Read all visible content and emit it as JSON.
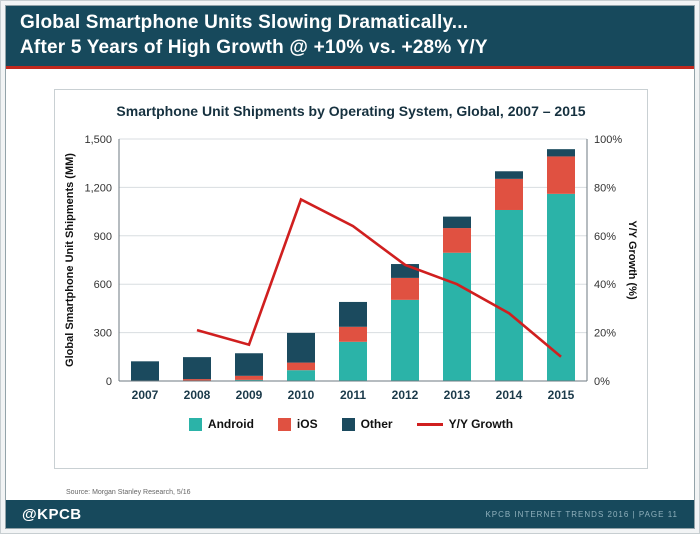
{
  "header": {
    "line1": "Global Smartphone Units Slowing Dramatically...",
    "line2": "After 5 Years of High Growth @ +10% vs. +28% Y/Y"
  },
  "footer": {
    "logo": "@KPCB",
    "right_text": "KPCB INTERNET TRENDS 2016   |   PAGE 11"
  },
  "source_note": "Source: Morgan Stanley Research, 5/16",
  "colors": {
    "header_bg": "#17495C",
    "accent_red": "#C2281D",
    "android": "#2BB3A8",
    "ios": "#E05141",
    "other": "#1B4A5E",
    "growth_line": "#D01F1F",
    "grid": "#D8DDE0",
    "axis": "#6E7A80"
  },
  "chart_data": {
    "type": "bar",
    "subtype": "stacked-bars-with-secondary-axis-line",
    "title": "Smartphone Unit Shipments by Operating System, Global, 2007 – 2015",
    "categories": [
      "2007",
      "2008",
      "2009",
      "2010",
      "2011",
      "2012",
      "2013",
      "2014",
      "2015"
    ],
    "series": [
      {
        "name": "Android",
        "color_key": "android",
        "values": [
          0,
          1,
          7,
          67,
          243,
          503,
          795,
          1060,
          1160
        ]
      },
      {
        "name": "iOS",
        "color_key": "ios",
        "values": [
          2,
          11,
          25,
          47,
          93,
          136,
          153,
          193,
          232
        ]
      },
      {
        "name": "Other",
        "color_key": "other",
        "values": [
          120,
          136,
          140,
          184,
          154,
          86,
          71,
          47,
          45
        ]
      }
    ],
    "line_series": {
      "name": "Y/Y Growth",
      "color_key": "growth_line",
      "values": [
        null,
        21,
        15,
        75,
        64,
        48,
        40,
        28,
        10
      ]
    },
    "ylabel_left": "Global Smartphone Unit Shipments (MM)",
    "ylabel_right": "Y/Y Growth (%)",
    "ylim_left": [
      0,
      1500
    ],
    "ylim_right": [
      0,
      100
    ],
    "ytick_values_left": [
      0,
      300,
      600,
      900,
      1200,
      1500
    ],
    "ytick_labels_left": [
      "0",
      "300",
      "600",
      "900",
      "1,200",
      "1,500"
    ],
    "ytick_values_right": [
      0,
      20,
      40,
      60,
      80,
      100
    ],
    "ytick_labels_right": [
      "0%",
      "20%",
      "40%",
      "60%",
      "80%",
      "100%"
    ],
    "grid": true,
    "legend_position": "bottom"
  }
}
